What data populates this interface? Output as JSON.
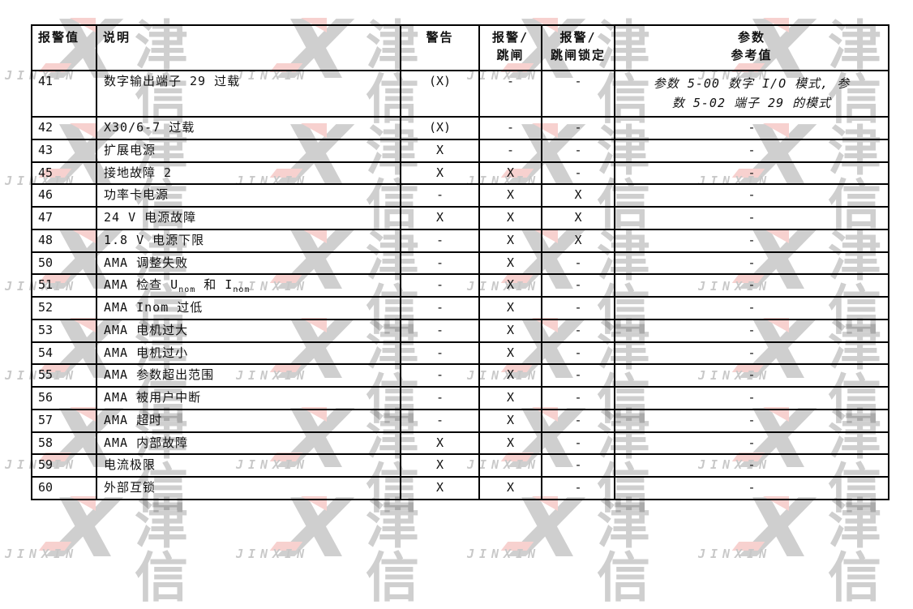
{
  "table": {
    "headers": [
      "报警值",
      "说明",
      "警告",
      "报警/\n跳闸",
      "报警/\n跳闸锁定",
      "参数\n参考值"
    ],
    "rows": [
      {
        "value": "41",
        "desc": "数字输出端子 29 过载",
        "warning": "(X)",
        "alarm_trip": "-",
        "trip_lock": "-",
        "param_lines": [
          "参数 5-00 数字 I/O 模式, 参",
          "数 5-02 端子 29 的模式"
        ],
        "param_italic": true,
        "tall": true
      },
      {
        "value": "42",
        "desc": "X30/6-7 过载",
        "warning": "(X)",
        "alarm_trip": "-",
        "trip_lock": "-",
        "param": "-"
      },
      {
        "value": "43",
        "desc": "扩展电源",
        "warning": "X",
        "alarm_trip": "-",
        "trip_lock": "-",
        "param": "-"
      },
      {
        "value": "45",
        "desc": "接地故障 2",
        "warning": "X",
        "alarm_trip": "X",
        "trip_lock": "-",
        "param": "-"
      },
      {
        "value": "46",
        "desc": "功率卡电源",
        "warning": "-",
        "alarm_trip": "X",
        "trip_lock": "X",
        "param": "-"
      },
      {
        "value": "47",
        "desc": "24 V 电源故障",
        "warning": "X",
        "alarm_trip": "X",
        "trip_lock": "X",
        "param": "-"
      },
      {
        "value": "48",
        "desc": "1.8 V 电源下限",
        "warning": "-",
        "alarm_trip": "X",
        "trip_lock": "X",
        "param": "-"
      },
      {
        "value": "50",
        "desc": "AMA 调整失败",
        "warning": "-",
        "alarm_trip": "X",
        "trip_lock": "-",
        "param": "-"
      },
      {
        "value": "51",
        "desc_parts": [
          "AMA 检查 U",
          {
            "sub": "nom"
          },
          " 和 I",
          {
            "sub": "nom"
          }
        ],
        "warning": "-",
        "alarm_trip": "X",
        "trip_lock": "-",
        "param": "-"
      },
      {
        "value": "52",
        "desc": "AMA Inom 过低",
        "warning": "-",
        "alarm_trip": "X",
        "trip_lock": "-",
        "param": "-"
      },
      {
        "value": "53",
        "desc": "AMA 电机过大",
        "warning": "-",
        "alarm_trip": "X",
        "trip_lock": "-",
        "param": "-"
      },
      {
        "value": "54",
        "desc": "AMA 电机过小",
        "warning": "-",
        "alarm_trip": "X",
        "trip_lock": "-",
        "param": "-"
      },
      {
        "value": "55",
        "desc": "AMA 参数超出范围",
        "warning": "-",
        "alarm_trip": "X",
        "trip_lock": "-",
        "param": "-"
      },
      {
        "value": "56",
        "desc": "AMA 被用户中断",
        "warning": "-",
        "alarm_trip": "X",
        "trip_lock": "-",
        "param": "-"
      },
      {
        "value": "57",
        "desc": "AMA 超时",
        "warning": "-",
        "alarm_trip": "X",
        "trip_lock": "-",
        "param": "-"
      },
      {
        "value": "58",
        "desc": "AMA 内部故障",
        "warning": "X",
        "alarm_trip": "X",
        "trip_lock": "-",
        "param": "-"
      },
      {
        "value": "59",
        "desc": "电流极限",
        "warning": "X",
        "alarm_trip": "",
        "trip_lock": "-",
        "param": "-"
      },
      {
        "value": "60",
        "desc": "外部互锁",
        "warning": "X",
        "alarm_trip": "X",
        "trip_lock": "-",
        "param": "-"
      }
    ]
  },
  "watermark": {
    "x_glyph": "X",
    "cn_text": "津信",
    "en_text": "JINXIN",
    "accent_color": "#e2453a"
  },
  "colors": {
    "border": "#000000",
    "text": "#111111",
    "background": "#ffffff"
  }
}
